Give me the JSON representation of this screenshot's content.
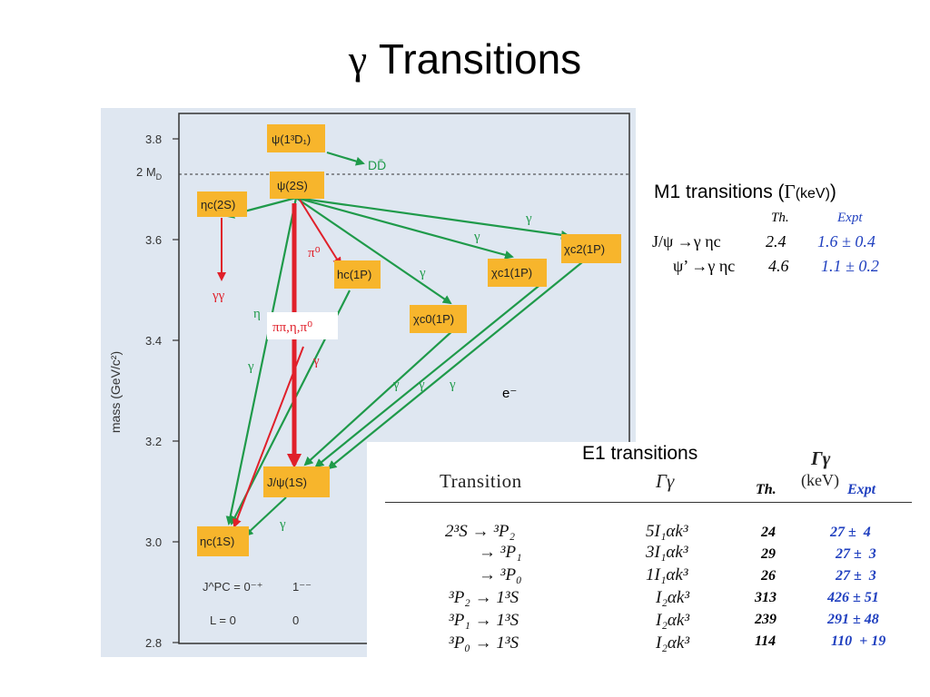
{
  "title": {
    "symbol": "γ",
    "text": "Transitions"
  },
  "axis": {
    "label": "mass (GeV/c²)",
    "ticks": [
      "3.8",
      "3.6",
      "3.4",
      "3.2",
      "3.0",
      "2.8"
    ],
    "threshold_label": "2 M",
    "threshold_sub": "D"
  },
  "states": {
    "psi3770": "ψ(1³D₁)",
    "psi2s": "ψ(2S)",
    "etac2s": "ηc(2S)",
    "hc": "hc(1P)",
    "chic0": "χc0(1P)",
    "chic1": "χc1(1P)",
    "chic2": "χc2(1P)",
    "jpsi": "J/ψ(1S)",
    "etac1s": "ηc(1S)"
  },
  "labels": {
    "ddbar": "DD̄",
    "gamma": "γ",
    "gammagamma": "γγ",
    "pi0": "π⁰",
    "pipi": "ππ,η,π⁰",
    "eta": "η",
    "eminus": "e⁻",
    "jpc0": "J^PC = 0⁻⁺",
    "jpc1": "1⁻⁻",
    "l0": "L = 0",
    "l0b": "0"
  },
  "m1": {
    "heading": "M1 transitions (",
    "gamma_sym": "Γ",
    "unit": "(keV)",
    "close": ")",
    "col_th": "Th.",
    "col_expt": "Expt",
    "rows": [
      {
        "transition": "J/ψ →γ ηc",
        "th": "2.4",
        "expt": "1.6 ± 0.4"
      },
      {
        "transition": "ψ’ →γ ηc",
        "th": "4.6",
        "expt": "1.1 ± 0.2"
      }
    ]
  },
  "e1": {
    "title": "E1 transitions",
    "header_transition": "Transition",
    "header_gamma": "Γγ",
    "header_gamma2": "Γγ",
    "header_unit": "(keV)",
    "col_th": "Th.",
    "col_expt": "Expt",
    "rows": [
      {
        "transition": "2³S → ³P₂",
        "formula": "5I₁αk³",
        "th": "24",
        "expt": "27 ±  4"
      },
      {
        "transition": "→ ³P₁",
        "formula": "3I₁αk³",
        "th": "29",
        "expt": "27 ±  3"
      },
      {
        "transition": "→ ³P₀",
        "formula": "1I₁αk³",
        "th": "26",
        "expt": "27 ±  3"
      },
      {
        "transition": "³P₂ → 1³S",
        "formula": "I₂αk³",
        "th": "313",
        "expt": "426 ± 51"
      },
      {
        "transition": "³P₁ → 1³S",
        "formula": "I₂αk³",
        "th": "239",
        "expt": "291 ± 48"
      },
      {
        "transition": "³P₀ → 1³S",
        "formula": "I₂αk³",
        "th": "114",
        "expt": "110  + 19"
      }
    ]
  },
  "colors": {
    "panel_bg": "#dfe7f1",
    "state_box": "#f7b52c",
    "green_arrow": "#1f9a4a",
    "red_arrow": "#e0202a",
    "expt_blue": "#1f3fbf"
  }
}
